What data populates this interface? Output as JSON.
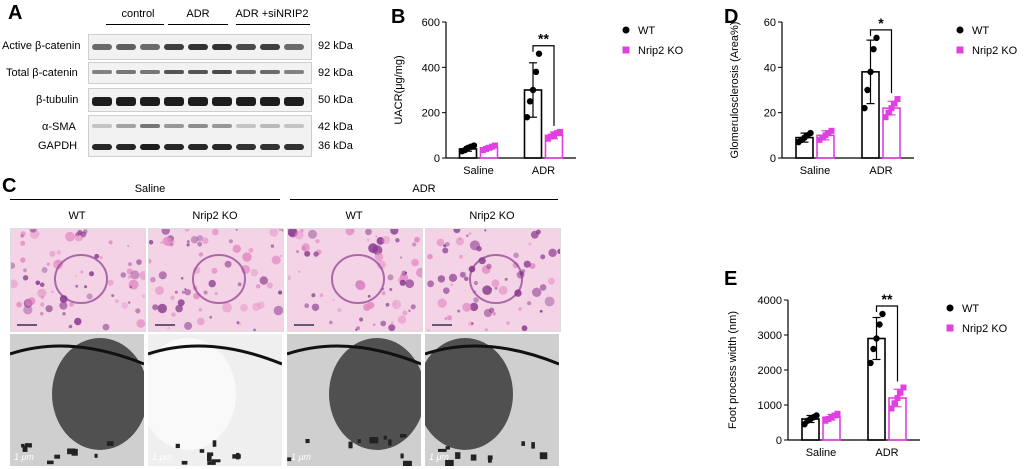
{
  "panels": {
    "a": "A",
    "b": "B",
    "c": "C",
    "d": "D",
    "e": "E"
  },
  "western_blot": {
    "groups": [
      "control",
      "ADR",
      "ADR +siNRIP2"
    ],
    "rows": [
      {
        "label": "Active β-catenin",
        "kda": "92 kDa"
      },
      {
        "label": "Total β-catenin",
        "kda": "92 kDa"
      },
      {
        "label": "β-tubulin",
        "kda": "50 kDa"
      },
      {
        "label": "α-SMA",
        "kda": "42 kDa"
      },
      {
        "label": "GAPDH",
        "kda": "36 kDa"
      }
    ]
  },
  "images": {
    "treatments": [
      "Saline",
      "ADR"
    ],
    "genotypes": [
      "WT",
      "Nrip2 KO",
      "WT",
      "Nrip2 KO"
    ],
    "em_scale": "1 μm"
  },
  "legend": {
    "wt": "WT",
    "ko": "Nrip2 KO"
  },
  "colors": {
    "wt": "#000000",
    "ko": "#e040e0",
    "stain_pink": "#e48ac4",
    "stain_purple": "#8a3a8e"
  },
  "chart_data": [
    {
      "id": "B",
      "type": "bar",
      "title": "",
      "xlabel": "",
      "ylabel": "UACR(μg/mg)",
      "ylim": [
        0,
        600
      ],
      "yticks": [
        "0",
        "200",
        "400",
        "600"
      ],
      "categories": [
        "Saline",
        "ADR"
      ],
      "series": [
        {
          "name": "WT",
          "values": [
            40,
            300
          ],
          "err": [
            10,
            120
          ],
          "points": [
            [
              30,
              35,
              45,
              50,
              55
            ],
            [
              180,
              250,
              300,
              380,
              460
            ]
          ]
        },
        {
          "name": "Nrip2 KO",
          "values": [
            45,
            100
          ],
          "err": [
            8,
            15
          ],
          "points": [
            [
              35,
              40,
              45,
              50,
              55
            ],
            [
              85,
              95,
              100,
              110,
              115
            ]
          ]
        }
      ],
      "significance": "**"
    },
    {
      "id": "D",
      "type": "bar",
      "title": "",
      "xlabel": "",
      "ylabel": "Glomerulosclerosis (Area%)",
      "ylim": [
        0,
        60
      ],
      "yticks": [
        "0",
        "20",
        "40",
        "60"
      ],
      "categories": [
        "Saline",
        "ADR"
      ],
      "series": [
        {
          "name": "WT",
          "values": [
            9,
            38
          ],
          "err": [
            2,
            14
          ],
          "points": [
            [
              7,
              8,
              9,
              10,
              11
            ],
            [
              22,
              30,
              38,
              48,
              53
            ]
          ]
        },
        {
          "name": "Nrip2 KO",
          "values": [
            10,
            22
          ],
          "err": [
            2,
            3
          ],
          "points": [
            [
              8,
              9,
              10,
              11,
              12
            ],
            [
              18,
              20,
              22,
              24,
              26
            ]
          ]
        }
      ],
      "significance": "*"
    },
    {
      "id": "E",
      "type": "bar",
      "title": "",
      "xlabel": "",
      "ylabel": "Foot process width (nm)",
      "ylim": [
        0,
        4000
      ],
      "yticks": [
        "0",
        "1000",
        "2000",
        "3000",
        "4000"
      ],
      "categories": [
        "Saline",
        "ADR"
      ],
      "series": [
        {
          "name": "WT",
          "values": [
            600,
            2900
          ],
          "err": [
            100,
            600
          ],
          "points": [
            [
              450,
              550,
              600,
              650,
              700
            ],
            [
              2200,
              2600,
              2900,
              3300,
              3600
            ]
          ]
        },
        {
          "name": "Nrip2 KO",
          "values": [
            650,
            1200
          ],
          "err": [
            80,
            250
          ],
          "points": [
            [
              550,
              600,
              650,
              700,
              750
            ],
            [
              900,
              1050,
              1200,
              1350,
              1500
            ]
          ]
        }
      ],
      "significance": "**"
    }
  ]
}
